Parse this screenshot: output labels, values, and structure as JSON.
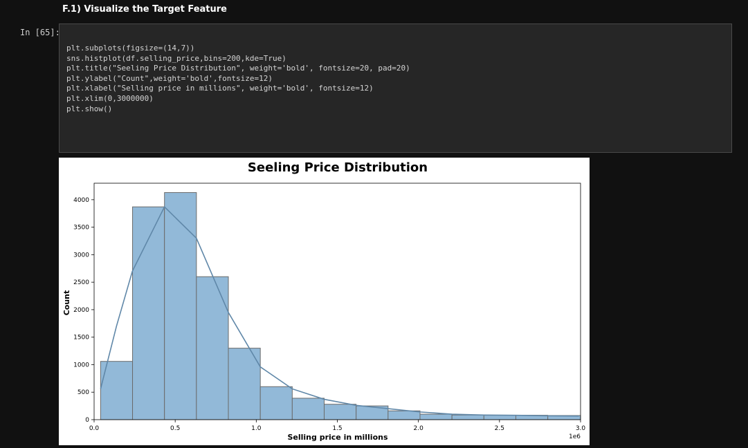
{
  "markdown": {
    "heading": "F.1) Visualize the Target Feature"
  },
  "cell": {
    "prompt": "In [65]:",
    "code_lines": [
      "plt.subplots(figsize=(14,7))",
      "sns.histplot(df.selling_price,bins=200,kde=True)",
      "plt.title(\"Seeling Price Distribution\", weight='bold', fontsize=20, pad=20)",
      "plt.ylabel(\"Count\",weight='bold',fontsize=12)",
      "plt.xlabel(\"Selling price in millions\", weight='bold', fontsize=12)",
      "plt.xlim(0,3000000)",
      "plt.show()"
    ]
  },
  "chart_data": {
    "type": "bar",
    "title": "Seeling Price Distribution",
    "xlabel": "Selling price in millions",
    "ylabel": "Count",
    "x_offset_label": "1e6",
    "xlim": [
      0,
      3.0
    ],
    "ylim": [
      0,
      4300
    ],
    "x_ticks": [
      "0.0",
      "0.5",
      "1.0",
      "1.5",
      "2.0",
      "2.5",
      "3.0"
    ],
    "y_ticks": [
      "0",
      "500",
      "1000",
      "1500",
      "2000",
      "2500",
      "3000",
      "3500",
      "4000"
    ],
    "bin_edges": [
      0.04,
      0.237,
      0.434,
      0.631,
      0.828,
      1.025,
      1.222,
      1.419,
      1.616,
      1.813,
      2.01,
      2.207,
      2.404,
      2.601,
      2.798,
      3.0
    ],
    "counts": [
      1060,
      3870,
      4130,
      2600,
      1300,
      600,
      390,
      280,
      250,
      160,
      100,
      85,
      80,
      80,
      75
    ],
    "kde": {
      "x": [
        0.04,
        0.138,
        0.236,
        0.434,
        0.631,
        0.828,
        1.025,
        1.222,
        1.419,
        1.616,
        1.813,
        2.01,
        2.207,
        2.404,
        2.601,
        2.798,
        2.99
      ],
      "y": [
        560,
        1700,
        2700,
        3870,
        3300,
        1950,
        960,
        560,
        370,
        260,
        200,
        140,
        100,
        85,
        80,
        70,
        65
      ]
    },
    "grid": false,
    "legend": "none",
    "colors": {
      "bar_fill": "#92b9d8",
      "bar_edge": "#6b6b6b",
      "kde_line": "#5f87a8"
    }
  }
}
